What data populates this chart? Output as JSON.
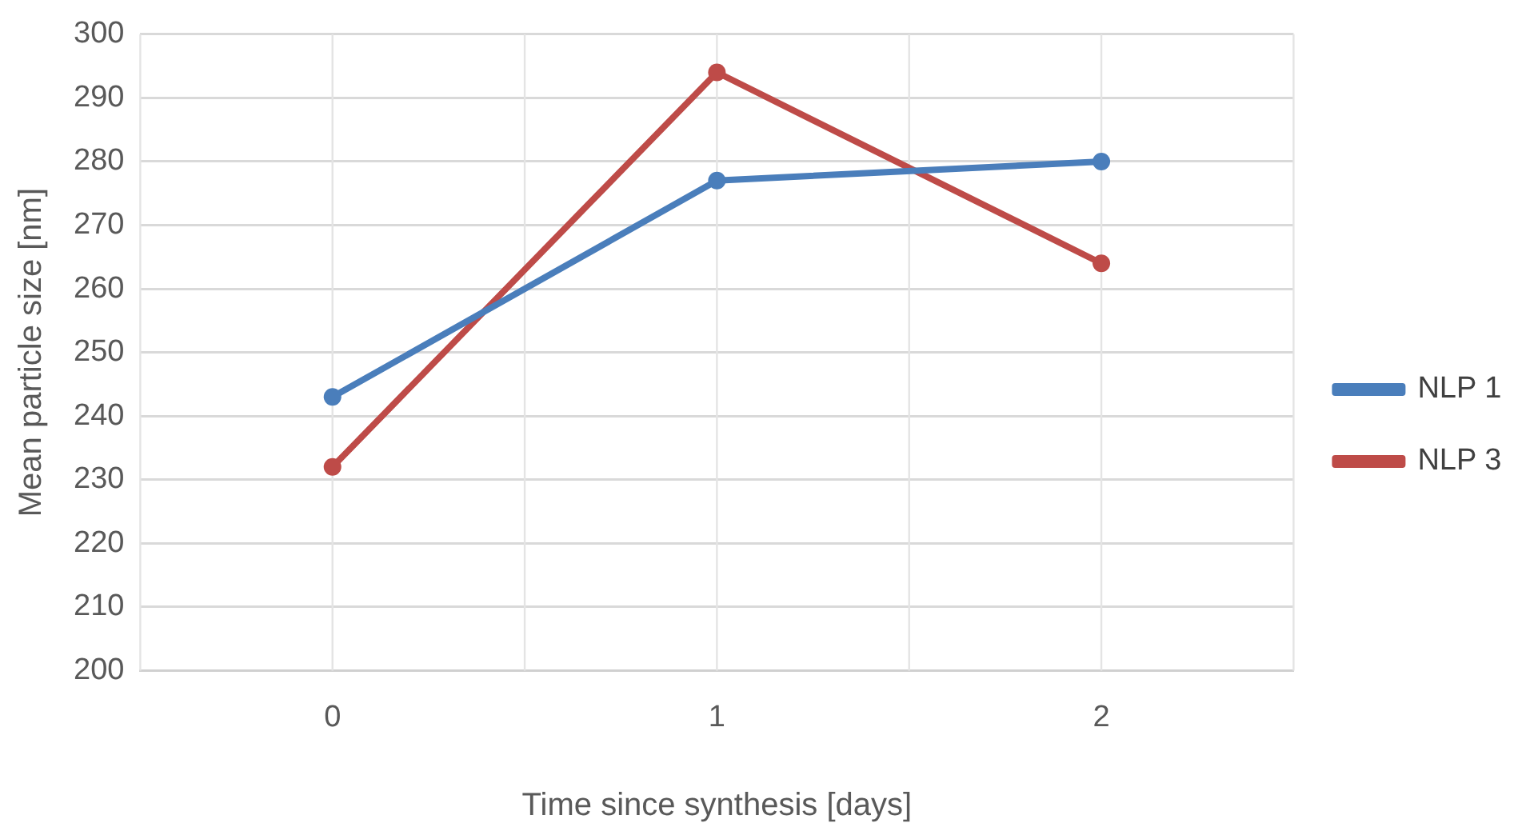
{
  "chart_data": {
    "type": "line",
    "xlabel": "Time since synthesis [days]",
    "ylabel": "Mean particle size [nm]",
    "categories": [
      "0",
      "1",
      "2"
    ],
    "series": [
      {
        "name": "NLP 1",
        "color": "#4a7ebb",
        "values": [
          243,
          277,
          280
        ]
      },
      {
        "name": "NLP 3",
        "color": "#be4b48",
        "values": [
          232,
          294,
          264
        ]
      }
    ],
    "ylim": [
      200,
      300
    ],
    "yticks": [
      200,
      210,
      220,
      230,
      240,
      250,
      260,
      270,
      280,
      290,
      300
    ],
    "grid": true,
    "legend": "right",
    "marker": "circle",
    "line_style": "solid"
  }
}
